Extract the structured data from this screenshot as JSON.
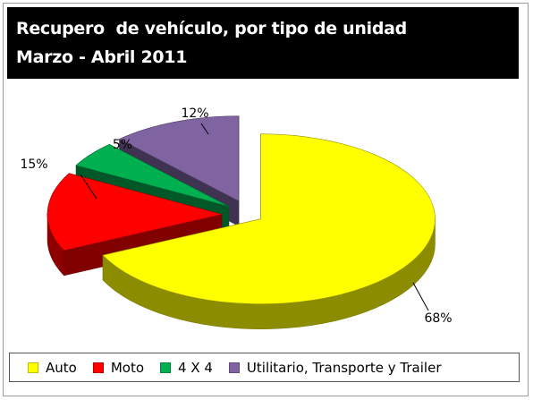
{
  "chart_data": {
    "type": "pie",
    "title": "Recupero  de vehículo, por tipo de unidad",
    "subtitle": "Marzo - Abril 2011",
    "categories": [
      "Auto",
      "Moto",
      "4 X 4",
      "Utilitario, Transporte y Trailer"
    ],
    "values": [
      68,
      15,
      5,
      12
    ],
    "value_labels": [
      "68%",
      "15%",
      "5%",
      "12%"
    ],
    "unit": "%",
    "legend_position": "bottom",
    "three_d": true,
    "exploded": true,
    "colors": {
      "Auto": "#ffff00",
      "Moto": "#ff0000",
      "4 X 4": "#00b050",
      "Utilitario, Transporte y Trailer": "#8064a2"
    }
  }
}
